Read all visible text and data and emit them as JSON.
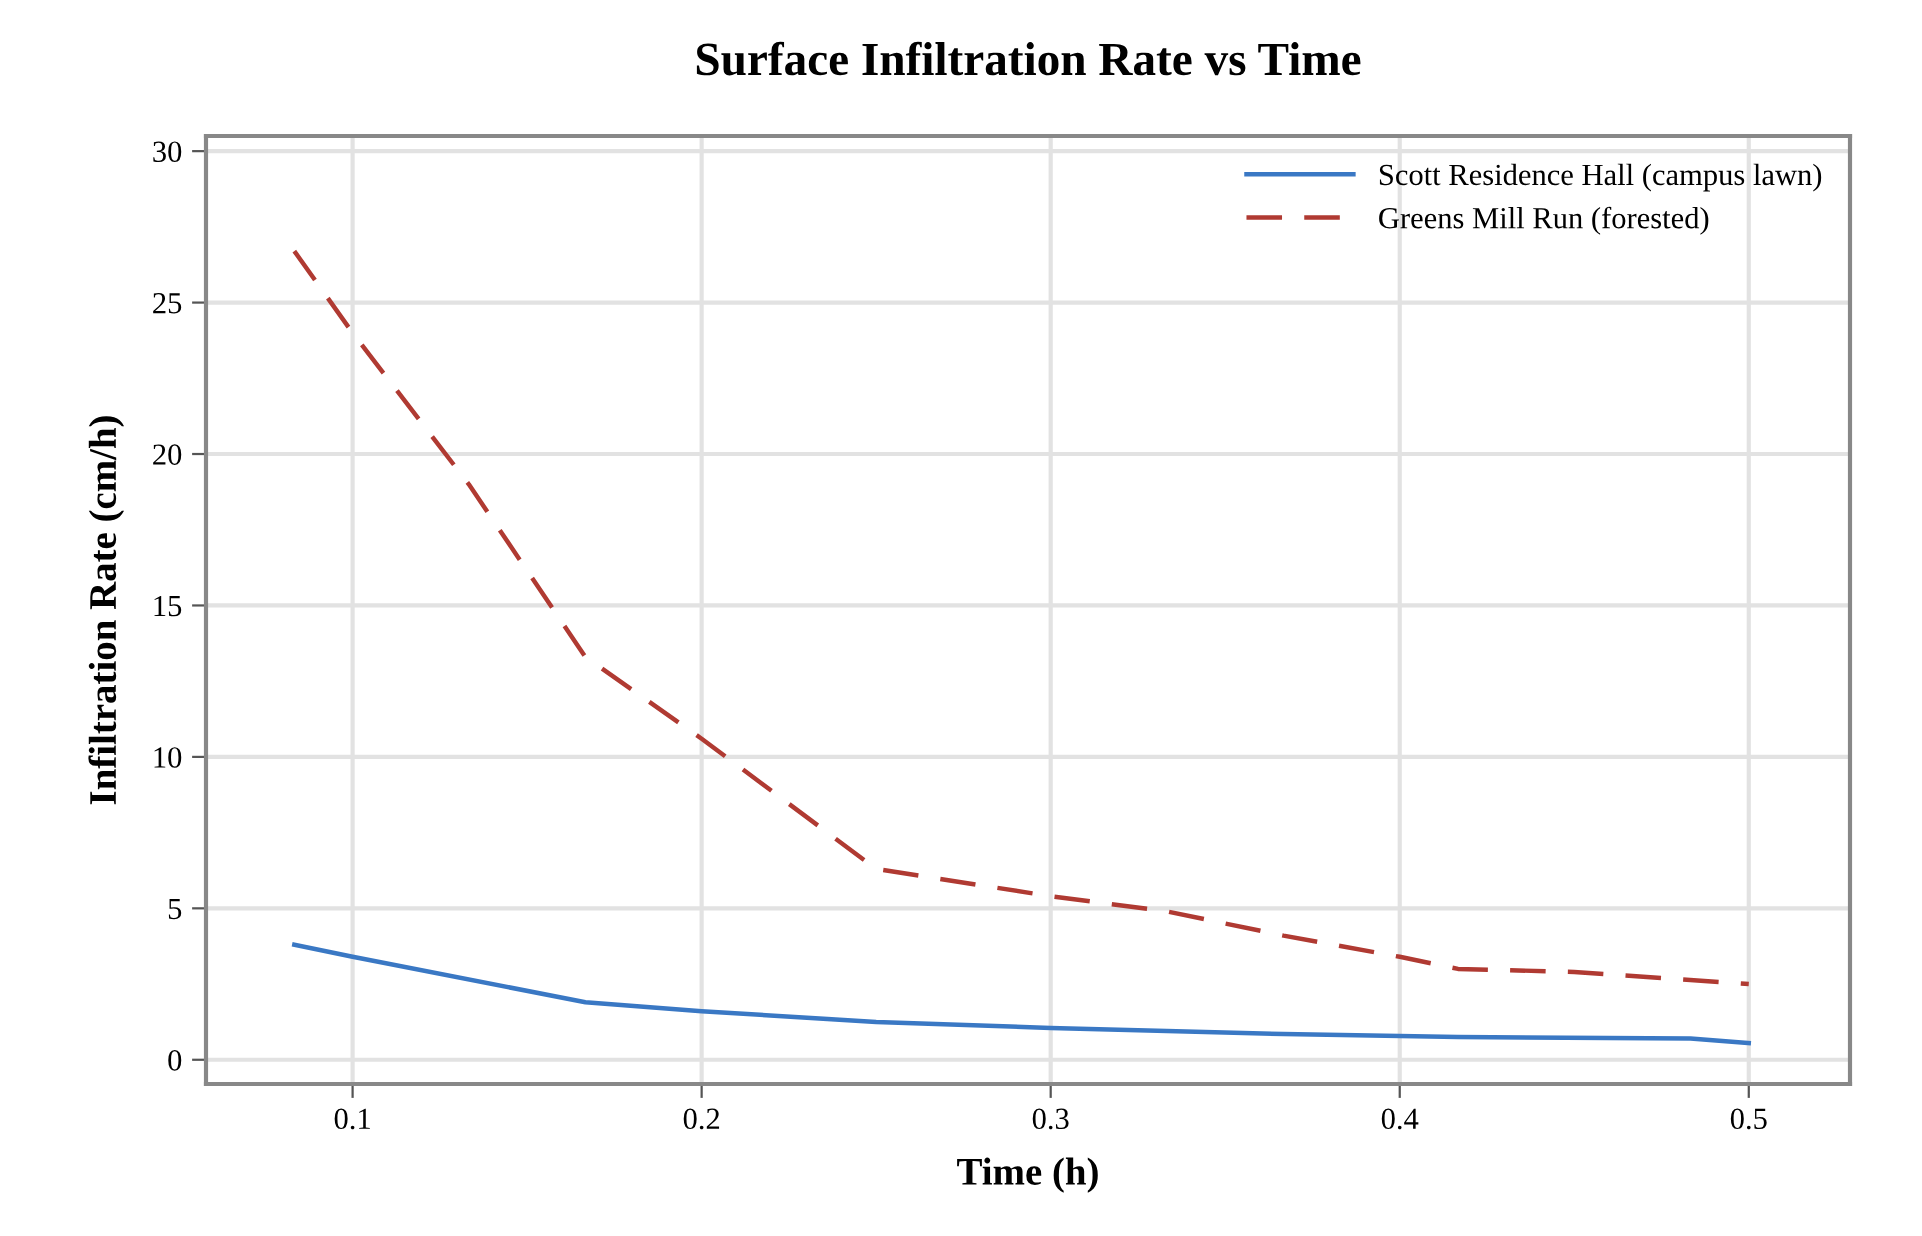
{
  "chart_data": {
    "type": "line",
    "title": "Surface Infiltration Rate vs Time",
    "xlabel": "Time (h)",
    "ylabel": "Infiltration Rate (cm/h)",
    "xlim": [
      0.058,
      0.529
    ],
    "xticks": [
      0.1,
      0.2,
      0.3,
      0.4,
      0.5
    ],
    "ylim": [
      -0.8,
      30.5
    ],
    "yticks": [
      0,
      5,
      10,
      15,
      20,
      25,
      30
    ],
    "grid": true,
    "legend": "top right",
    "series": [
      {
        "name": "Scott Residence Hall (campus lawn)",
        "color": "#3a78c4",
        "line_style": "solid",
        "x": [
          0.0833,
          0.1,
          0.1667,
          0.2,
          0.25,
          0.3,
          0.3333,
          0.3667,
          0.4167,
          0.4833,
          0.5
        ],
        "values": [
          3.8,
          3.4,
          1.9,
          1.6,
          1.25,
          1.05,
          0.95,
          0.85,
          0.75,
          0.7,
          0.55
        ]
      },
      {
        "name": "Greens Mill Run (forested)",
        "color": "#b03a32",
        "line_style": "dashed",
        "x": [
          0.0833,
          0.1,
          0.1333,
          0.1667,
          0.2,
          0.25,
          0.3,
          0.3333,
          0.3667,
          0.4,
          0.4167,
          0.45,
          0.5
        ],
        "values": [
          26.7,
          24,
          19,
          13.3,
          10.6,
          6.3,
          5.4,
          4.9,
          4.1,
          3.4,
          3.0,
          2.9,
          2.5
        ]
      }
    ]
  }
}
